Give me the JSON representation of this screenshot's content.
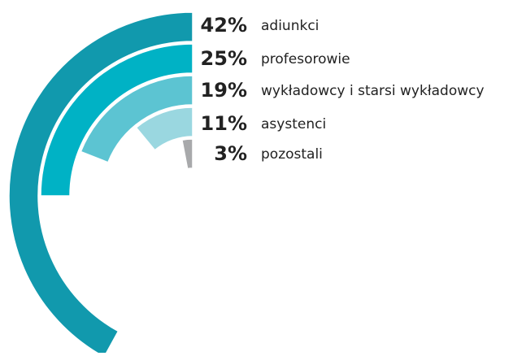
{
  "chart_data": {
    "type": "radial-bar",
    "categories": [
      "adiunkci",
      "profesorowie",
      "wykładowcy i starsi wykładowcy",
      "asystenci",
      "pozostali"
    ],
    "values": [
      42,
      25,
      19,
      11,
      3
    ],
    "value_labels": [
      "42%",
      "25%",
      "19%",
      "11%",
      "3%"
    ],
    "colors": [
      "#1199ad",
      "#00b2c5",
      "#5cc4d2",
      "#9ad7e0",
      "#a8a9ab"
    ]
  }
}
